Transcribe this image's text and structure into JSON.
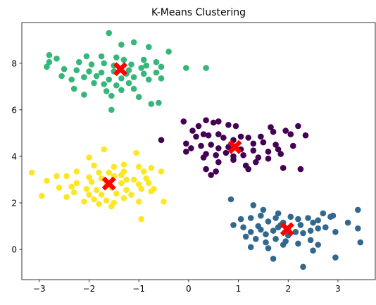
{
  "chart_data": {
    "type": "scatter",
    "title": "K-Means Clustering",
    "xlabel": "",
    "ylabel": "",
    "xlim": [
      -3.35,
      3.75
    ],
    "ylim": [
      -1.3,
      9.75
    ],
    "xticks": [
      -3,
      -2,
      -1,
      0,
      1,
      2,
      3
    ],
    "yticks": [
      0,
      2,
      4,
      6,
      8
    ],
    "grid": false,
    "legend": "none",
    "series": [
      {
        "color": "#440154",
        "points": [
          [
            -0.1,
            5.5
          ],
          [
            0.08,
            5.1
          ],
          [
            0.2,
            5.3
          ],
          [
            0.35,
            5.55
          ],
          [
            0.5,
            5.45
          ],
          [
            0.6,
            5.5
          ],
          [
            0.8,
            5.35
          ],
          [
            0.95,
            5.3
          ],
          [
            0.15,
            4.85
          ],
          [
            0.3,
            4.95
          ],
          [
            0.4,
            4.9
          ],
          [
            0.6,
            4.95
          ],
          [
            0.7,
            4.8
          ],
          [
            0.9,
            4.7
          ],
          [
            1.05,
            4.85
          ],
          [
            1.2,
            4.8
          ],
          [
            1.3,
            4.55
          ],
          [
            1.5,
            4.6
          ],
          [
            1.75,
            4.5
          ],
          [
            1.65,
            5.25
          ],
          [
            1.95,
            5.1
          ],
          [
            2.05,
            4.95
          ],
          [
            2.2,
            5.3
          ],
          [
            2.35,
            4.9
          ],
          [
            -0.05,
            4.55
          ],
          [
            0.05,
            4.35
          ],
          [
            0.25,
            4.45
          ],
          [
            0.45,
            4.5
          ],
          [
            0.6,
            4.35
          ],
          [
            0.8,
            4.4
          ],
          [
            1.05,
            4.3
          ],
          [
            1.3,
            4.25
          ],
          [
            1.6,
            4.2
          ],
          [
            1.8,
            4.3
          ],
          [
            2.1,
            4.45
          ],
          [
            -0.05,
            4.2
          ],
          [
            0.35,
            4.1
          ],
          [
            0.55,
            4.05
          ],
          [
            0.75,
            4.15
          ],
          [
            0.9,
            4.0
          ],
          [
            1.1,
            4.05
          ],
          [
            1.4,
            3.95
          ],
          [
            1.6,
            3.9
          ],
          [
            1.85,
            4.1
          ],
          [
            0.3,
            3.95
          ],
          [
            0.6,
            3.75
          ],
          [
            0.9,
            3.85
          ],
          [
            1.15,
            3.6
          ],
          [
            1.35,
            3.75
          ],
          [
            1.2,
            3.45
          ],
          [
            0.35,
            3.45
          ],
          [
            0.45,
            3.2
          ],
          [
            0.55,
            3.35
          ],
          [
            1.9,
            3.5
          ],
          [
            2.25,
            3.45
          ],
          [
            -0.55,
            4.7
          ],
          [
            1.7,
            5.05
          ],
          [
            1.45,
            4.85
          ]
        ]
      },
      {
        "color": "#31688e",
        "points": [
          [
            0.85,
            2.15
          ],
          [
            1.3,
            1.9
          ],
          [
            1.5,
            1.7
          ],
          [
            1.8,
            1.55
          ],
          [
            1.25,
            1.35
          ],
          [
            1.45,
            1.45
          ],
          [
            1.6,
            1.2
          ],
          [
            1.75,
            1.35
          ],
          [
            1.9,
            1.15
          ],
          [
            2.05,
            1.4
          ],
          [
            2.2,
            1.3
          ],
          [
            2.4,
            1.35
          ],
          [
            2.5,
            1.15
          ],
          [
            2.7,
            1.55
          ],
          [
            2.85,
            1.4
          ],
          [
            2.9,
            1.45
          ],
          [
            3.4,
            1.7
          ],
          [
            3.2,
            1.15
          ],
          [
            3.4,
            0.9
          ],
          [
            3.45,
            0.3
          ],
          [
            0.9,
            1.05
          ],
          [
            1.1,
            0.95
          ],
          [
            1.25,
            0.75
          ],
          [
            1.45,
            0.85
          ],
          [
            1.55,
            0.65
          ],
          [
            1.7,
            0.8
          ],
          [
            1.8,
            0.95
          ],
          [
            2.0,
            0.6
          ],
          [
            2.15,
            0.75
          ],
          [
            2.3,
            0.7
          ],
          [
            2.45,
            0.8
          ],
          [
            2.6,
            0.9
          ],
          [
            2.75,
            0.95
          ],
          [
            2.95,
            0.75
          ],
          [
            1.15,
            0.55
          ],
          [
            1.35,
            0.45
          ],
          [
            1.55,
            0.3
          ],
          [
            1.75,
            0.45
          ],
          [
            1.95,
            0.35
          ],
          [
            2.2,
            0.25
          ],
          [
            2.45,
            0.4
          ],
          [
            2.6,
            0.2
          ],
          [
            1.25,
            0.1
          ],
          [
            1.6,
            0.05
          ],
          [
            1.7,
            -0.4
          ],
          [
            2.5,
            -0.05
          ],
          [
            2.95,
            -0.35
          ],
          [
            2.3,
            -0.75
          ],
          [
            1.05,
            1.3
          ],
          [
            1.85,
            1.05
          ],
          [
            2.25,
            1.05
          ],
          [
            2.6,
            1.25
          ],
          [
            1.9,
            0.2
          ],
          [
            1.4,
            1.0
          ]
        ]
      },
      {
        "color": "#35b779",
        "points": [
          [
            -1.6,
            9.3
          ],
          [
            -1.35,
            8.8
          ],
          [
            -1.1,
            8.9
          ],
          [
            -0.8,
            8.7
          ],
          [
            -0.4,
            8.5
          ],
          [
            -2.8,
            8.35
          ],
          [
            -2.05,
            8.3
          ],
          [
            -1.75,
            8.3
          ],
          [
            -1.45,
            8.25
          ],
          [
            -1.3,
            8.15
          ],
          [
            -0.9,
            8.15
          ],
          [
            -0.65,
            8.05
          ],
          [
            -2.8,
            8.05
          ],
          [
            -2.2,
            8.05
          ],
          [
            -1.95,
            7.95
          ],
          [
            -1.7,
            8.0
          ],
          [
            -1.5,
            7.9
          ],
          [
            -1.15,
            7.95
          ],
          [
            -0.85,
            7.9
          ],
          [
            -0.55,
            7.85
          ],
          [
            -0.05,
            7.8
          ],
          [
            0.35,
            7.8
          ],
          [
            -2.85,
            7.85
          ],
          [
            -2.5,
            7.75
          ],
          [
            -2.25,
            7.7
          ],
          [
            -2.0,
            7.65
          ],
          [
            -1.75,
            7.6
          ],
          [
            -1.5,
            7.65
          ],
          [
            -1.2,
            7.7
          ],
          [
            -0.9,
            7.55
          ],
          [
            -0.65,
            7.6
          ],
          [
            -2.55,
            7.45
          ],
          [
            -2.1,
            7.4
          ],
          [
            -1.85,
            7.45
          ],
          [
            -1.6,
            7.3
          ],
          [
            -1.35,
            7.35
          ],
          [
            -1.1,
            7.4
          ],
          [
            -0.8,
            7.3
          ],
          [
            -0.55,
            7.35
          ],
          [
            -2.35,
            7.3
          ],
          [
            -1.9,
            7.15
          ],
          [
            -1.7,
            7.1
          ],
          [
            -1.45,
            7.05
          ],
          [
            -1.2,
            7.15
          ],
          [
            -2.3,
            6.9
          ],
          [
            -1.65,
            6.8
          ],
          [
            -1.35,
            6.85
          ],
          [
            -1.1,
            6.9
          ],
          [
            -2.1,
            6.65
          ],
          [
            -1.55,
            6.6
          ],
          [
            -1.0,
            6.55
          ],
          [
            -0.75,
            6.25
          ],
          [
            -0.6,
            6.3
          ],
          [
            -1.55,
            6.0
          ],
          [
            -1.25,
            7.55
          ],
          [
            -0.95,
            7.8
          ],
          [
            -2.65,
            8.2
          ]
        ]
      },
      {
        "color": "#fde725",
        "points": [
          [
            -1.7,
            4.3
          ],
          [
            -1.05,
            4.15
          ],
          [
            -2.0,
            3.95
          ],
          [
            -1.3,
            3.65
          ],
          [
            -1.9,
            3.6
          ],
          [
            -1.5,
            3.55
          ],
          [
            -1.0,
            3.55
          ],
          [
            -0.75,
            3.5
          ],
          [
            -2.25,
            3.35
          ],
          [
            -1.8,
            3.3
          ],
          [
            -1.6,
            3.3
          ],
          [
            -1.3,
            3.35
          ],
          [
            -0.9,
            3.35
          ],
          [
            -0.55,
            3.35
          ],
          [
            -3.15,
            3.3
          ],
          [
            -2.65,
            3.15
          ],
          [
            -2.45,
            3.15
          ],
          [
            -2.0,
            3.1
          ],
          [
            -1.75,
            3.05
          ],
          [
            -1.5,
            3.15
          ],
          [
            -1.25,
            3.0
          ],
          [
            -1.1,
            3.0
          ],
          [
            -0.85,
            3.05
          ],
          [
            -2.85,
            2.95
          ],
          [
            -2.25,
            2.85
          ],
          [
            -1.95,
            2.9
          ],
          [
            -1.65,
            2.8
          ],
          [
            -1.35,
            2.85
          ],
          [
            -1.0,
            2.8
          ],
          [
            -0.8,
            2.85
          ],
          [
            -2.6,
            2.65
          ],
          [
            -2.05,
            2.6
          ],
          [
            -1.85,
            2.55
          ],
          [
            -1.55,
            2.65
          ],
          [
            -1.25,
            2.55
          ],
          [
            -0.95,
            2.6
          ],
          [
            -0.7,
            2.6
          ],
          [
            -2.3,
            2.45
          ],
          [
            -2.0,
            2.35
          ],
          [
            -1.75,
            2.35
          ],
          [
            -1.45,
            2.4
          ],
          [
            -1.15,
            2.35
          ],
          [
            -0.75,
            2.5
          ],
          [
            -2.95,
            2.3
          ],
          [
            -2.45,
            2.25
          ],
          [
            -1.9,
            2.15
          ],
          [
            -1.65,
            2.1
          ],
          [
            -1.3,
            2.2
          ],
          [
            -2.1,
            2.05
          ],
          [
            -1.8,
            1.95
          ],
          [
            -1.5,
            2.0
          ],
          [
            -1.0,
            2.05
          ],
          [
            -0.5,
            2.05
          ],
          [
            -1.55,
            1.85
          ],
          [
            -0.95,
            1.3
          ],
          [
            -2.35,
            2.7
          ],
          [
            -1.35,
            3.2
          ]
        ]
      }
    ],
    "centroids": {
      "color": "#ff0000",
      "marker": "X",
      "points": [
        [
          0.93,
          4.4
        ],
        [
          1.98,
          0.87
        ],
        [
          -1.37,
          7.75
        ],
        [
          -1.6,
          2.83
        ]
      ]
    }
  }
}
